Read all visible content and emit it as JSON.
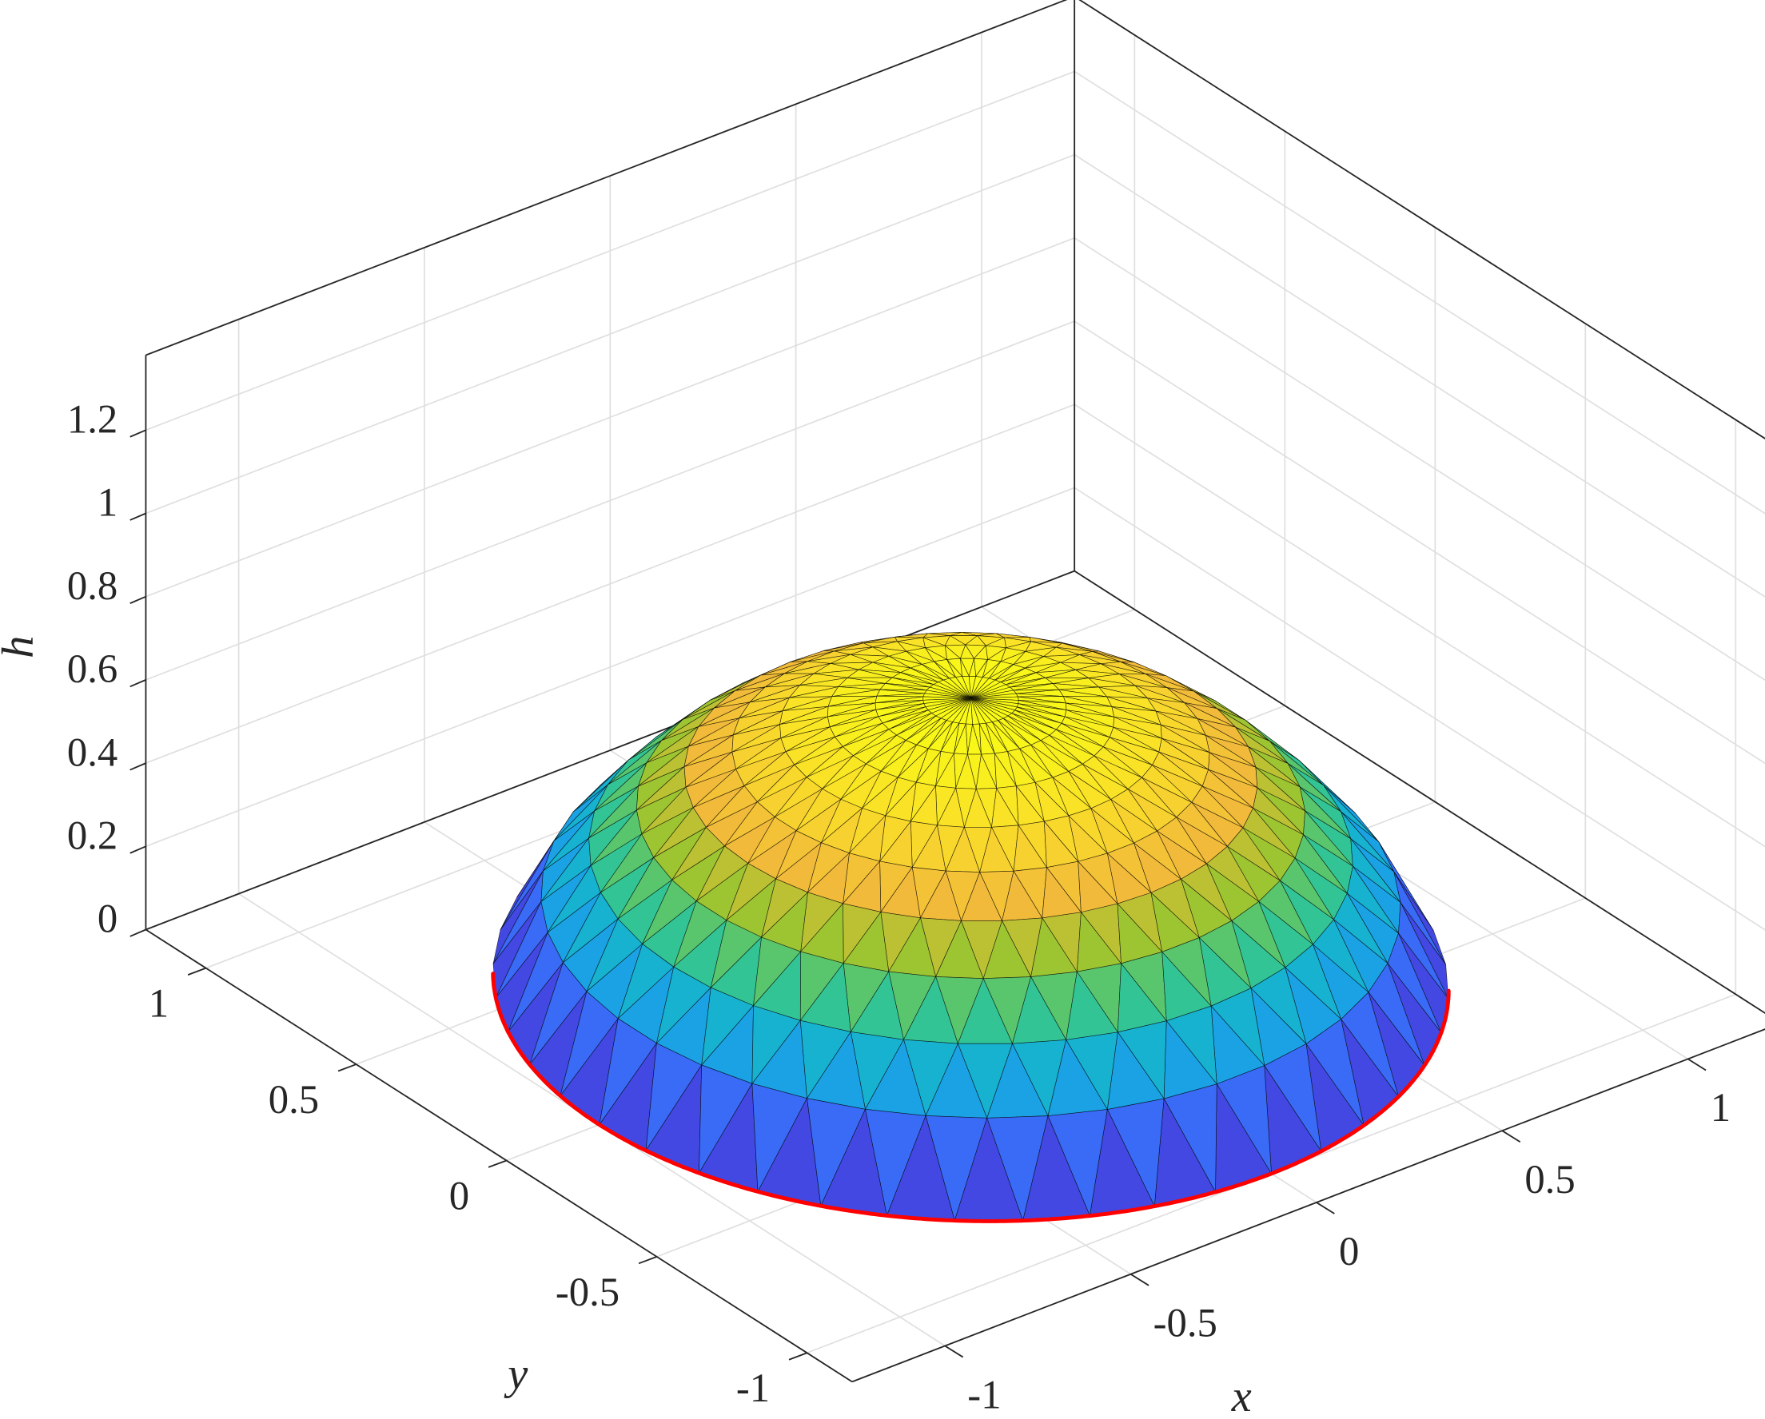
{
  "chart_data": {
    "type": "surface3d",
    "xlabel": "x",
    "ylabel": "y",
    "zlabel": "h",
    "xlim": [
      -1.25,
      1.25
    ],
    "ylim": [
      -1.15,
      1.2
    ],
    "zlim": [
      0,
      1.38
    ],
    "xticks": [
      -1,
      -0.5,
      0,
      0.5,
      1
    ],
    "yticks": [
      -1,
      -0.5,
      0,
      0.5,
      1
    ],
    "zticks": [
      0,
      0.2,
      0.4,
      0.6,
      0.8,
      1,
      1.2
    ],
    "grid": true,
    "surface": {
      "r": [
        0,
        0.1,
        0.2,
        0.3,
        0.4,
        0.5,
        0.6,
        0.7,
        0.8,
        0.9,
        1
      ],
      "h": [
        0.68,
        0.675,
        0.66,
        0.635,
        0.6,
        0.55,
        0.49,
        0.41,
        0.31,
        0.19,
        0
      ]
    },
    "colormap": [
      "#3e26a8",
      "#4353f5",
      "#2f84f9",
      "#12aedc",
      "#2fc49a",
      "#90c62f",
      "#f1ba3a",
      "#fadd2a",
      "#f9fb15"
    ],
    "edge_color": "#000000",
    "contact_line_color": "#ff0000"
  }
}
